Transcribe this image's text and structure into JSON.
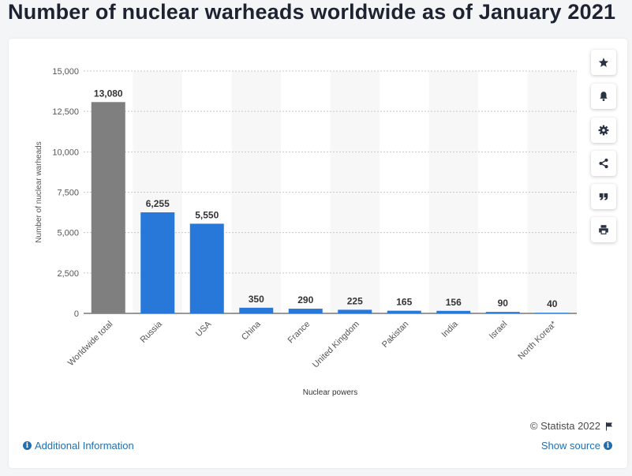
{
  "page": {
    "title": "Number of nuclear warheads worldwide as of January 2021"
  },
  "toolbar": {
    "buttons": [
      {
        "name": "favorite",
        "icon": "star-icon"
      },
      {
        "name": "notification",
        "icon": "bell-icon"
      },
      {
        "name": "settings",
        "icon": "gear-icon"
      },
      {
        "name": "share",
        "icon": "share-icon"
      },
      {
        "name": "cite",
        "icon": "quote-icon"
      },
      {
        "name": "print",
        "icon": "print-icon"
      }
    ]
  },
  "footer": {
    "copyright": "© Statista 2022",
    "additional_info": "Additional Information",
    "show_source": "Show source"
  },
  "colors": {
    "highlight_bar": "#7f7f7f",
    "bar": "#2878d9",
    "grid": "#c8c8c8",
    "band": "#f7f7f7",
    "link": "#1f6fb2"
  },
  "chart_data": {
    "type": "bar",
    "title": "Number of nuclear warheads worldwide as of January 2021",
    "xlabel": "Nuclear powers",
    "ylabel": "Number of nuclear warheads",
    "categories": [
      "Worldwide total",
      "Russia",
      "USA",
      "China",
      "France",
      "United Kingdom",
      "Pakistan",
      "India",
      "Israel",
      "North Korea*"
    ],
    "values": [
      13080,
      6255,
      5550,
      350,
      290,
      225,
      165,
      156,
      90,
      40
    ],
    "value_labels": [
      "13,080",
      "6,255",
      "5,550",
      "350",
      "290",
      "225",
      "165",
      "156",
      "90",
      "40"
    ],
    "highlighted_category": "Worldwide total",
    "ylim": [
      0,
      15000
    ],
    "yticks": [
      0,
      2500,
      5000,
      7500,
      10000,
      12500,
      15000
    ],
    "ytick_labels": [
      "0",
      "2,500",
      "5,000",
      "7,500",
      "10,000",
      "12,500",
      "15,000"
    ],
    "grid": true,
    "legend": "none"
  }
}
